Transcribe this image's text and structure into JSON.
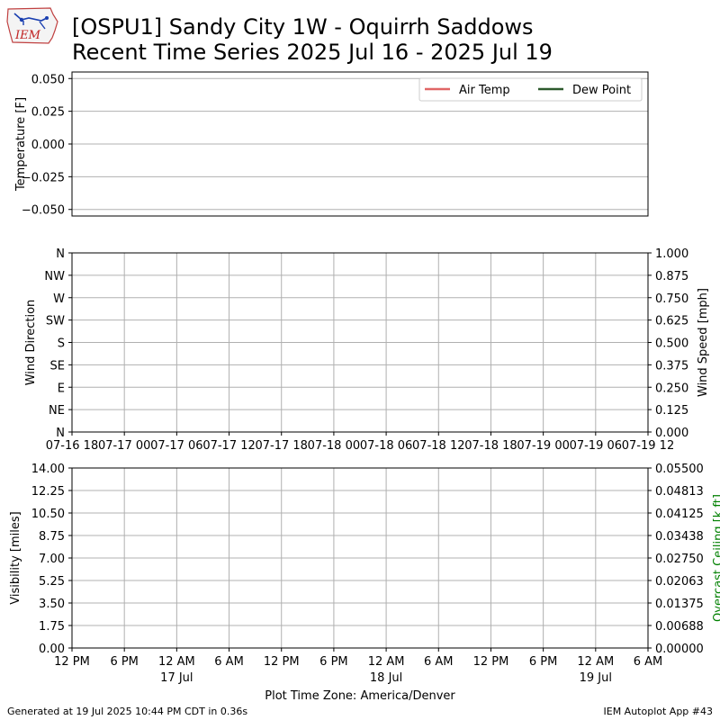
{
  "header": {
    "logo_text": "IEM",
    "title_line1": "[OSPU1] Sandy City 1W - Oquirrh Saddows",
    "title_line2": "Recent Time Series 2025 Jul 16 - 2025 Jul 19"
  },
  "footer": {
    "left": "Generated at 19 Jul 2025 10:44 PM CDT in 0.36s",
    "right": "IEM Autoplot App #43"
  },
  "colors": {
    "air_temp": "#e06666",
    "dew_point": "#2d5a2d",
    "ceiling_label": "#008000",
    "grid": "#b0b0b0"
  },
  "chart_data": [
    {
      "type": "line",
      "ylabel": "Temperature [F]",
      "yticks": [
        "0.050",
        "0.025",
        "0.000",
        "−0.025",
        "−0.050"
      ],
      "ylim": [
        -0.055,
        0.055
      ],
      "grid": true,
      "legend_position": "top-right",
      "series": [
        {
          "name": "Air Temp",
          "color": "#e06666",
          "values": []
        },
        {
          "name": "Dew Point",
          "color": "#2d5a2d",
          "values": []
        }
      ]
    },
    {
      "type": "scatter",
      "ylabel": "Wind Direction",
      "y2label": "Wind Speed [mph]",
      "yticks": [
        "N",
        "NW",
        "W",
        "SW",
        "S",
        "SE",
        "E",
        "NE",
        "N"
      ],
      "y2ticks": [
        "1.000",
        "0.875",
        "0.750",
        "0.625",
        "0.500",
        "0.375",
        "0.250",
        "0.125",
        "0.000"
      ],
      "xticks": [
        "07-16 18",
        "07-17 00",
        "07-17 06",
        "07-17 12",
        "07-17 18",
        "07-18 00",
        "07-18 06",
        "07-18 12",
        "07-18 18",
        "07-19 00",
        "07-19 06",
        "07-19 12"
      ],
      "grid": true,
      "series": []
    },
    {
      "type": "line",
      "ylabel": "Visibility [miles]",
      "y2label": "Overcast Ceiling [k ft]",
      "yticks": [
        "14.00",
        "12.25",
        "10.50",
        "8.75",
        "7.00",
        "5.25",
        "3.50",
        "1.75",
        "0.00"
      ],
      "y2ticks": [
        "0.05500",
        "0.04813",
        "0.04125",
        "0.03438",
        "0.02750",
        "0.02063",
        "0.01375",
        "0.00688",
        "0.00000"
      ],
      "ylim": [
        0,
        14
      ],
      "y2lim": [
        0,
        0.055
      ],
      "xticks": [
        "12 PM",
        "6 PM",
        "12 AM",
        "6 AM",
        "12 PM",
        "6 PM",
        "12 AM",
        "6 AM",
        "12 PM",
        "6 PM",
        "12 AM",
        "6 AM"
      ],
      "xsublabels": [
        {
          "tick": 2,
          "label": "17 Jul"
        },
        {
          "tick": 6,
          "label": "18 Jul"
        },
        {
          "tick": 10,
          "label": "19 Jul"
        }
      ],
      "xlabel": "Plot Time Zone: America/Denver",
      "grid": true,
      "series": []
    }
  ]
}
